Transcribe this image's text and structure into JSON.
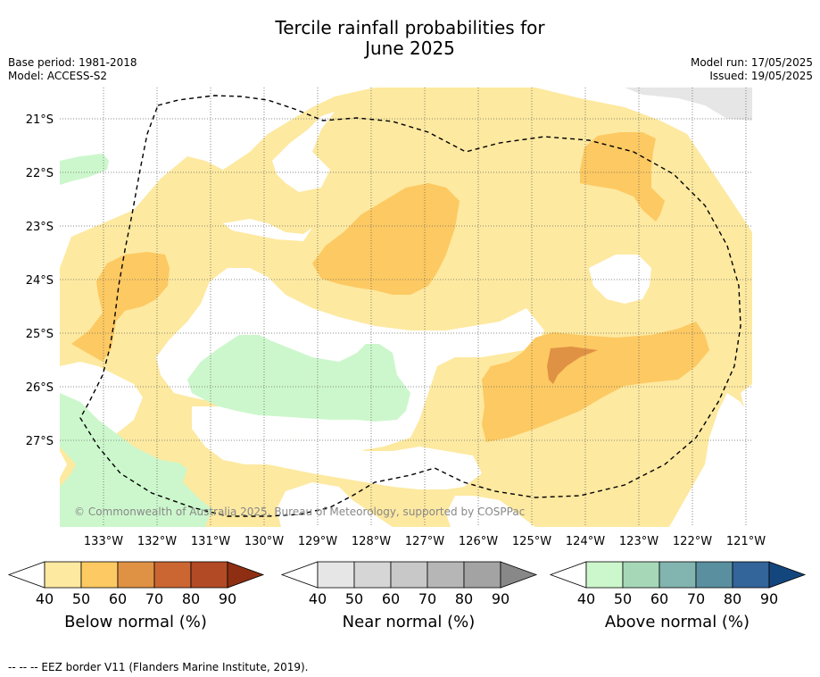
{
  "title_line1": "Tercile rainfall probabilities for",
  "title_line2": "June 2025",
  "base_period": "Base period: 1981-2018",
  "model": "Model: ACCESS-S2",
  "model_run": "Model run: 17/05/2025",
  "issued": "Issued: 19/05/2025",
  "copyright": "© Commonwealth of Australia 2025, Bureau of Meteorology, supported by COSPPac",
  "lat_labels": [
    "21°S",
    "22°S",
    "23°S",
    "24°S",
    "25°S",
    "26°S",
    "27°S"
  ],
  "lon_labels": [
    "133°W",
    "132°W",
    "131°W",
    "130°W",
    "129°W",
    "128°W",
    "127°W",
    "126°W",
    "125°W",
    "124°W",
    "123°W",
    "122°W",
    "121°W"
  ],
  "colorbars": [
    {
      "label": "Below normal (%)",
      "ticks": [
        "40",
        "50",
        "60",
        "70",
        "80",
        "90"
      ],
      "colors": [
        "#fde9a0",
        "#fdc962",
        "#e09244",
        "#cb6632",
        "#b24a25",
        "#8e2e12"
      ]
    },
    {
      "label": "Near normal (%)",
      "ticks": [
        "40",
        "50",
        "60",
        "70",
        "80",
        "90"
      ],
      "colors": [
        "#e6e6e6",
        "#d6d6d6",
        "#c8c8c8",
        "#b6b6b6",
        "#a3a3a3",
        "#888888"
      ]
    },
    {
      "label": "Above normal (%)",
      "ticks": [
        "40",
        "50",
        "60",
        "70",
        "80",
        "90"
      ],
      "colors": [
        "#ccf7cc",
        "#a6d8b8",
        "#82b4b0",
        "#5a8fa0",
        "#33649a",
        "#14467e"
      ]
    }
  ],
  "footer": "--  --  -- EEZ border V11 (Flanders Marine Institute, 2019)."
}
